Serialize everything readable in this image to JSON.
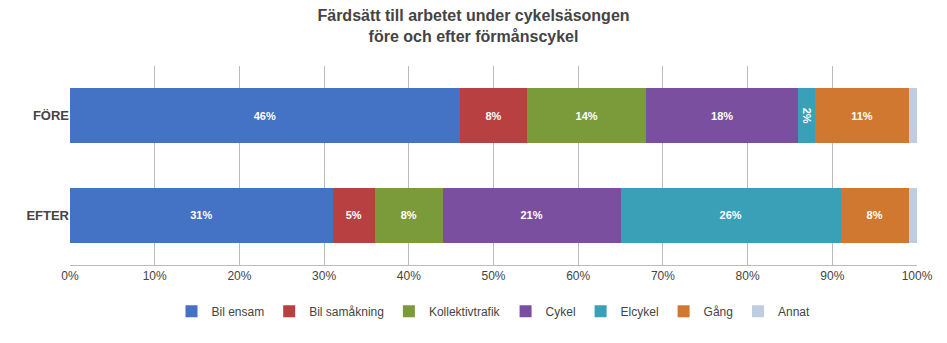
{
  "chart_data": {
    "type": "bar",
    "orientation": "horizontal",
    "stacked": true,
    "title": "Färdsätt till arbetet under cykelsäsongen\nföre och efter förmånscykel",
    "categories": [
      "EFTER",
      "FÖRE"
    ],
    "series": [
      {
        "name": "Bil ensam",
        "color": "#4472C4",
        "values": [
          31,
          46
        ],
        "value_labels": [
          "31%",
          "46%"
        ]
      },
      {
        "name": "Bil samåkning",
        "color": "#B94040",
        "values": [
          5,
          8
        ],
        "value_labels": [
          "5%",
          "8%"
        ]
      },
      {
        "name": "Kollektivtrafik",
        "color": "#7B9A3A",
        "values": [
          8,
          14
        ],
        "value_labels": [
          "8%",
          "14%"
        ]
      },
      {
        "name": "Cykel",
        "color": "#7B4FA0",
        "values": [
          21,
          18
        ],
        "value_labels": [
          "21%",
          "18%"
        ]
      },
      {
        "name": "Elcykel",
        "color": "#3AA0B8",
        "values": [
          26,
          2
        ],
        "value_labels": [
          "26%",
          "2%"
        ]
      },
      {
        "name": "Gång",
        "color": "#D07830",
        "values": [
          8,
          11
        ],
        "value_labels": [
          "8%",
          "11%"
        ]
      },
      {
        "name": "Annat",
        "color": "#C0CCE0",
        "values": [
          1,
          1
        ],
        "value_labels": [
          null,
          null
        ]
      }
    ],
    "xlim": [
      0,
      100
    ],
    "xticks": [
      {
        "value": 0,
        "label": "0%"
      },
      {
        "value": 10,
        "label": "10%"
      },
      {
        "value": 20,
        "label": "20%"
      },
      {
        "value": 30,
        "label": "30%"
      },
      {
        "value": 40,
        "label": "40%"
      },
      {
        "value": 50,
        "label": "50%"
      },
      {
        "value": 60,
        "label": "60%"
      },
      {
        "value": 70,
        "label": "70%"
      },
      {
        "value": 80,
        "label": "80%"
      },
      {
        "value": 90,
        "label": "90%"
      },
      {
        "value": 100,
        "label": "100%"
      }
    ],
    "grid": true,
    "legend": "bottom",
    "data_labels": true
  }
}
